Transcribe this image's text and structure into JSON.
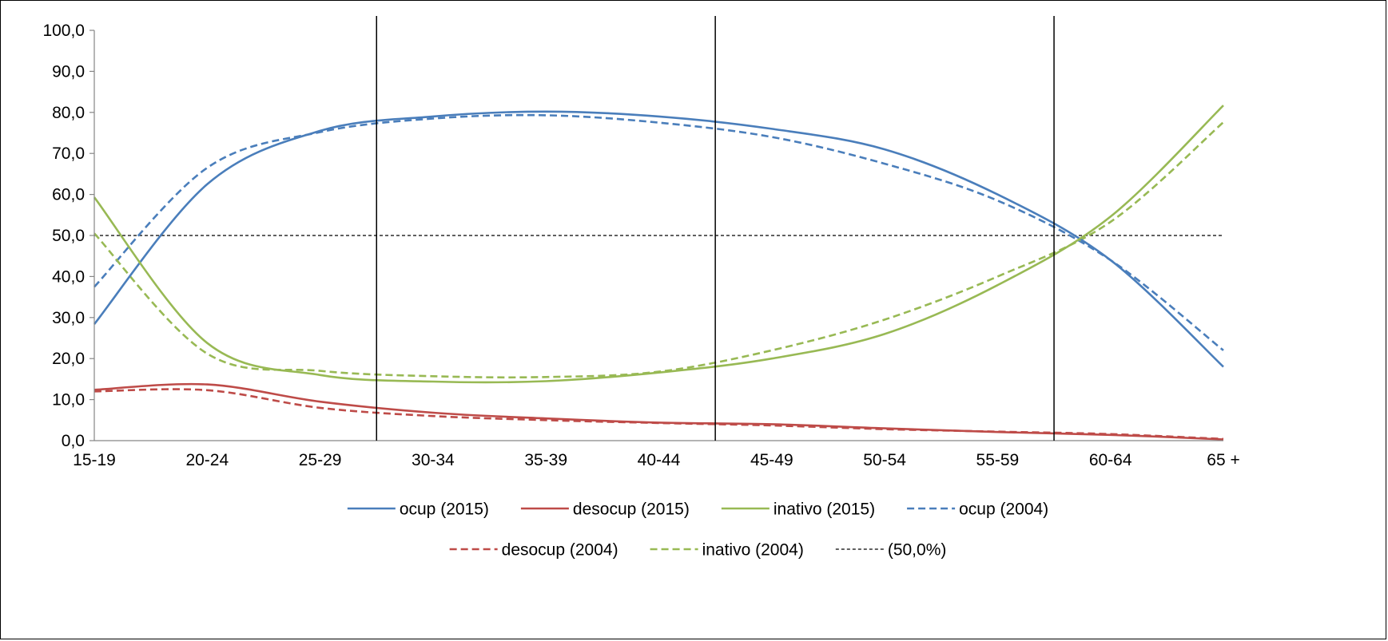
{
  "chart_data": {
    "type": "line",
    "title": "",
    "xlabel": "",
    "ylabel": "",
    "categories": [
      "15-19",
      "20-24",
      "25-29",
      "30-34",
      "35-39",
      "40-44",
      "45-49",
      "50-54",
      "55-59",
      "60-64",
      "65 +"
    ],
    "ylim": [
      0,
      100
    ],
    "yticks": [
      0,
      10,
      20,
      30,
      40,
      50,
      60,
      70,
      80,
      90,
      100
    ],
    "ytick_labels": [
      "0,0",
      "10,0",
      "20,0",
      "30,0",
      "40,0",
      "50,0",
      "60,0",
      "70,0",
      "80,0",
      "90,0",
      "100,0"
    ],
    "grid": false,
    "legend_position": "bottom",
    "vertical_markers_between": [
      [
        2,
        3
      ],
      [
        5,
        6
      ],
      [
        8,
        9
      ]
    ],
    "series": [
      {
        "name": "ocup (2015)",
        "color": "#4a7ebb",
        "dash": "solid",
        "values": [
          28.4,
          62.5,
          75.5,
          79.0,
          80.2,
          79.0,
          76.0,
          71.0,
          60.0,
          44.0,
          18.0
        ]
      },
      {
        "name": "desocup (2015)",
        "color": "#be4b48",
        "dash": "solid",
        "values": [
          12.4,
          13.7,
          9.5,
          6.8,
          5.4,
          4.4,
          4.0,
          3.0,
          2.1,
          1.4,
          0.3
        ]
      },
      {
        "name": "inativo (2015)",
        "color": "#98b954",
        "dash": "solid",
        "values": [
          59.3,
          23.8,
          16.0,
          14.4,
          14.5,
          16.6,
          20.0,
          26.0,
          37.9,
          54.6,
          81.7
        ]
      },
      {
        "name": "ocup (2004)",
        "color": "#4a7ebb",
        "dash": "dashed",
        "values": [
          37.5,
          66.5,
          75.2,
          78.5,
          79.3,
          77.5,
          74.0,
          67.5,
          58.5,
          44.0,
          22.0
        ]
      },
      {
        "name": "desocup (2004)",
        "color": "#be4b48",
        "dash": "dashed",
        "values": [
          12.0,
          12.3,
          8.0,
          6.0,
          5.0,
          4.3,
          3.7,
          2.8,
          2.2,
          1.6,
          0.4
        ]
      },
      {
        "name": "inativo (2004)",
        "color": "#98b954",
        "dash": "dashed",
        "values": [
          50.5,
          21.2,
          17.0,
          15.7,
          15.5,
          16.8,
          22.0,
          29.5,
          40.0,
          53.3,
          77.6
        ]
      },
      {
        "name": "(50,0%)",
        "color": "#000000",
        "dash": "dotted",
        "values": [
          50,
          50,
          50,
          50,
          50,
          50,
          50,
          50,
          50,
          50,
          50
        ]
      }
    ]
  }
}
